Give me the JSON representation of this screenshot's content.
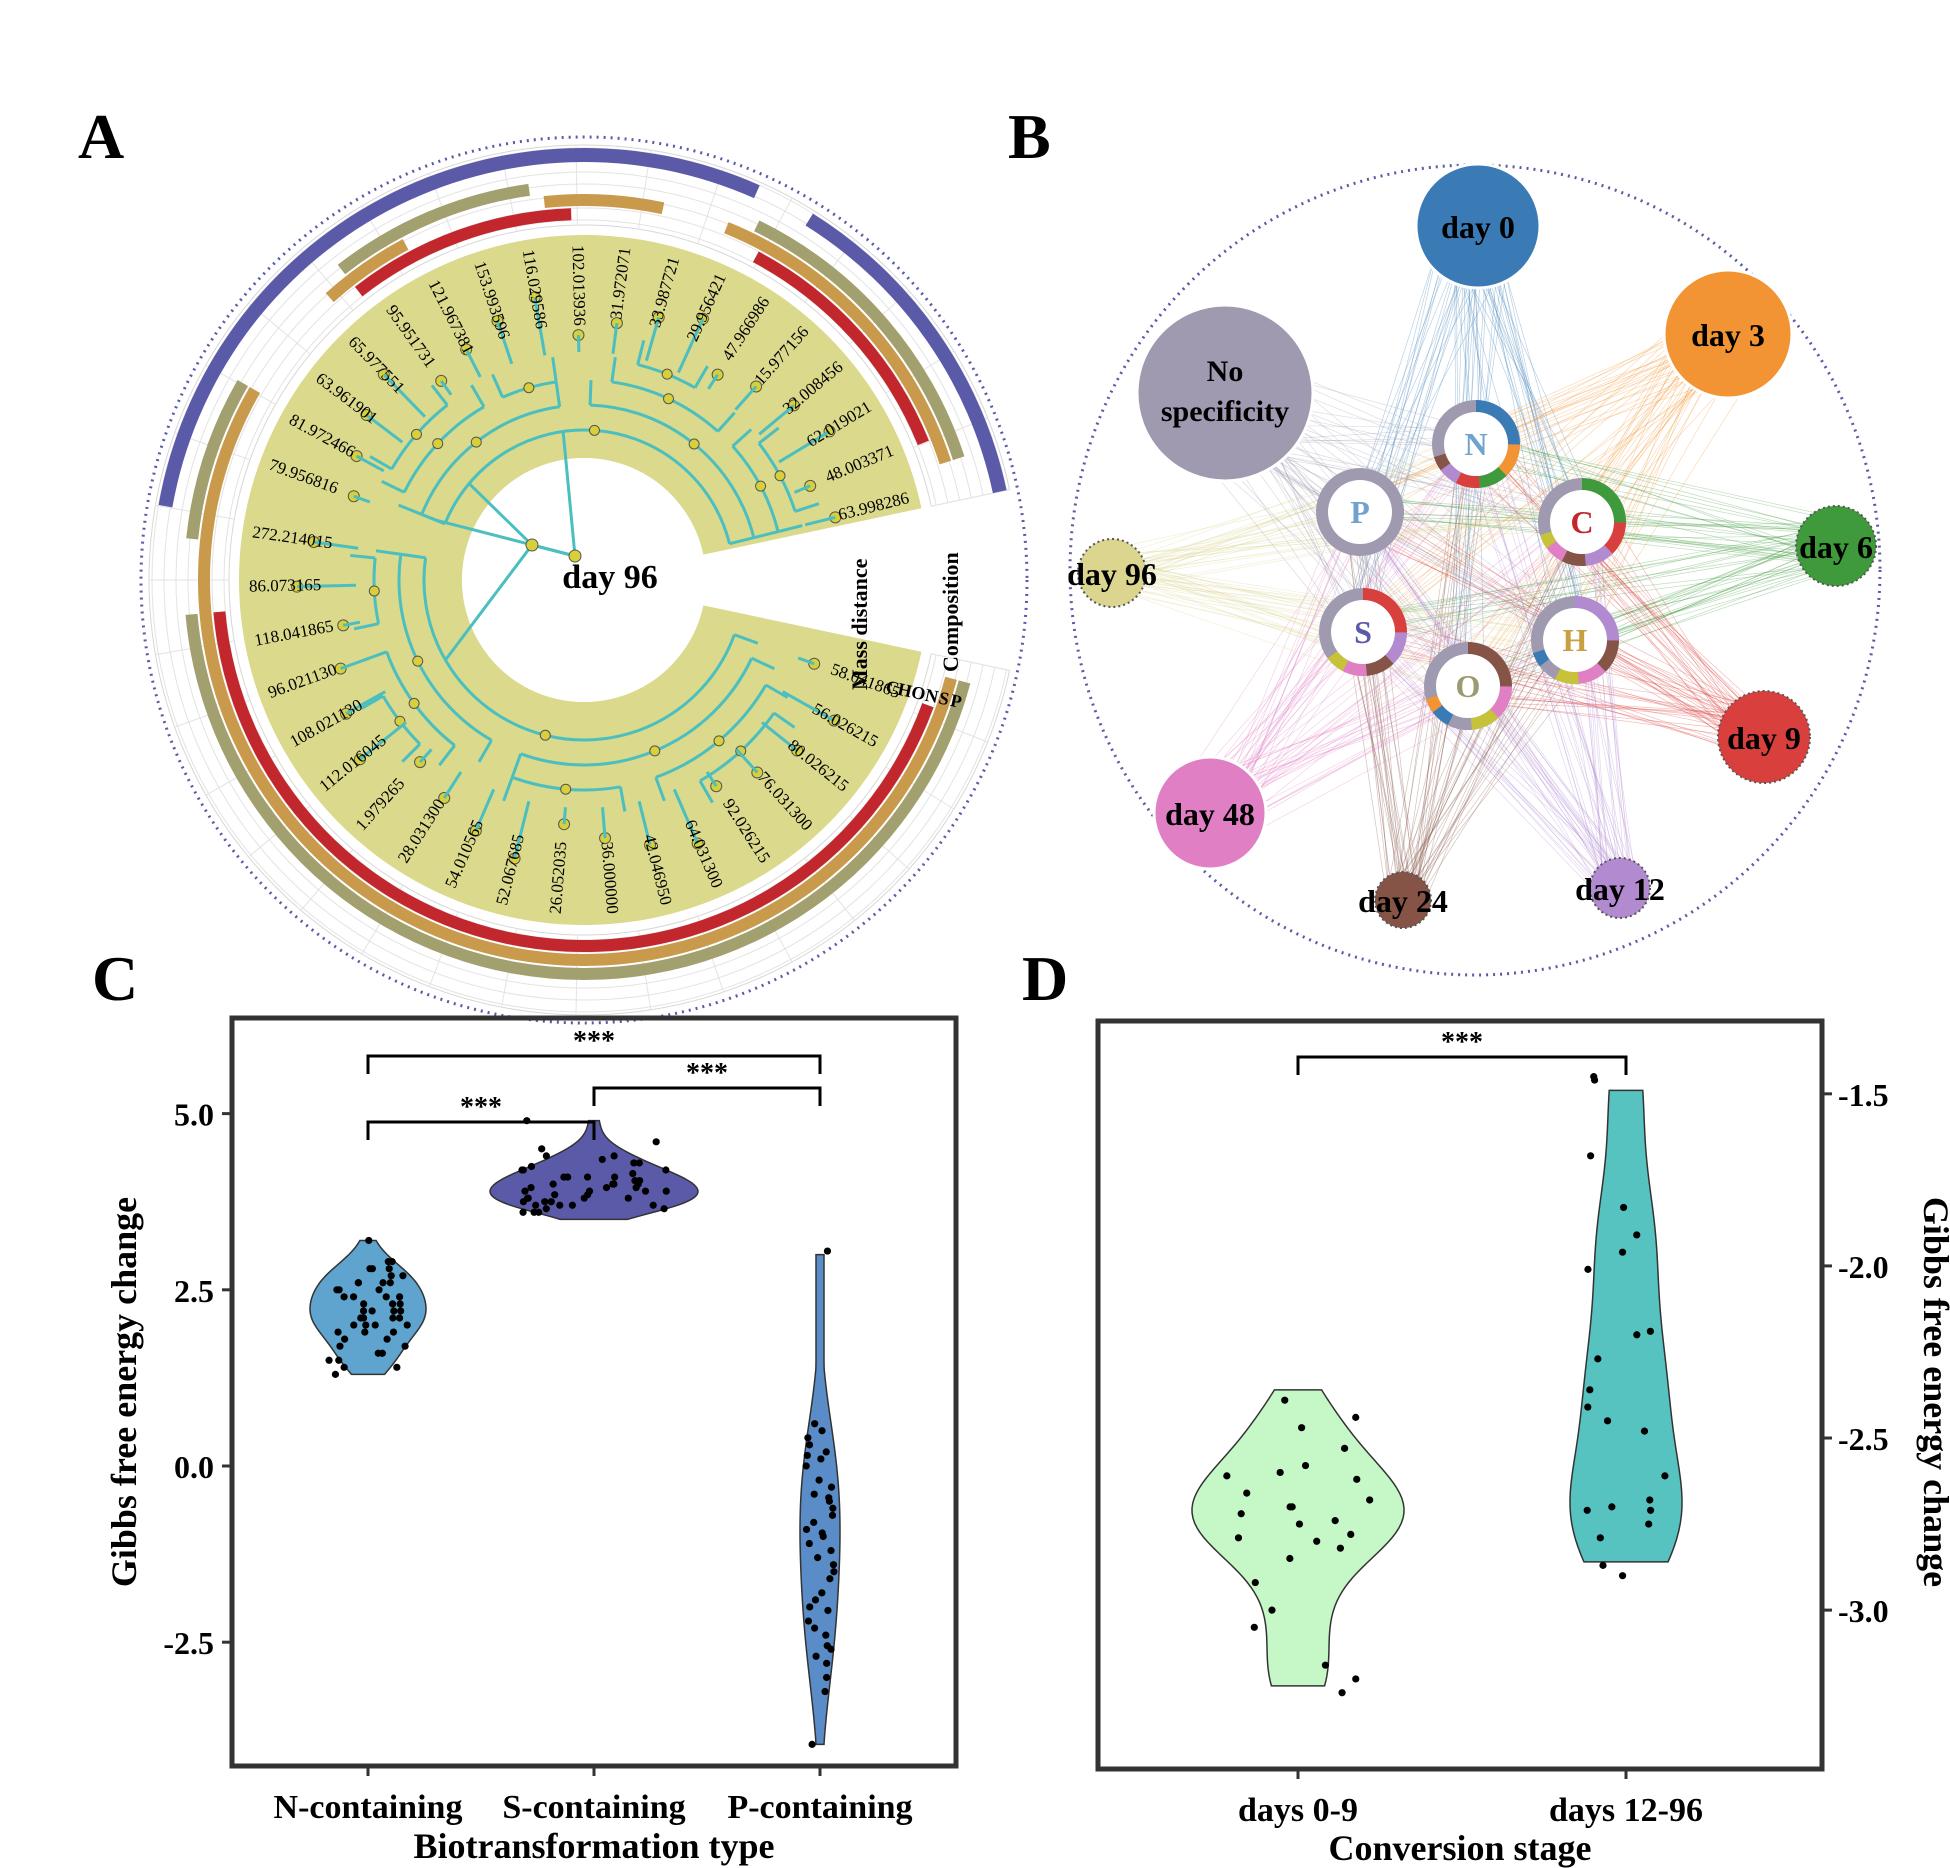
{
  "panels": {
    "A": "A",
    "B": "B",
    "C": "C",
    "D": "D"
  },
  "panelA": {
    "center_label": "day 96",
    "ring_label_mass": "Mass distance",
    "ring_label_composition": "Composition",
    "element_legend": [
      "C",
      "H",
      "O",
      "N",
      "S",
      "P"
    ],
    "element_colors": {
      "C": "#c1272d",
      "H": "#c9a040",
      "O": "#9b9a72",
      "N": "#7aa9c9",
      "S": "#5a5aa8",
      "P": "#5a5aa8"
    },
    "colors": {
      "fan": "#dad98c",
      "branch": "#4bbfc0",
      "node": "#d8d03a",
      "ring_red": "#c1272d",
      "ring_tan": "#c99a4c",
      "ring_olive": "#a3a070",
      "ring_purple": "#5a5aa8"
    },
    "leaves_upper": [
      "65.977551",
      "95.951731",
      "121.967381",
      "153.993596",
      "116.029586",
      "102.013936",
      "31.972071",
      "33.987721",
      "29.956421",
      "47.966986",
      "15.977156",
      "32.008456",
      "62.019021",
      "48.003371",
      "63.998286"
    ],
    "leaves_upper_left": [
      "63.961901",
      "81.972466",
      "79.956816"
    ],
    "leaves_lower": [
      "272.214015",
      "86.073165",
      "118.041865",
      "96.021130",
      "108.021130",
      "112.016045",
      "1.979265",
      "28.031300",
      "54.010565",
      "52.067685",
      "26.052035",
      "36.000000",
      "42.046950",
      "64.031300",
      "92.026215",
      "76.031300",
      "80.026215",
      "56.026215",
      "58.041865"
    ]
  },
  "panelB": {
    "element_nodes": [
      "N",
      "P",
      "C",
      "S",
      "H",
      "O"
    ],
    "element_label_colors": {
      "N": "#6fa2cf",
      "P": "#6fa2cf",
      "C": "#c1272d",
      "S": "#5a5aa8",
      "H": "#c9a040",
      "O": "#9b9a72"
    },
    "day_nodes": [
      {
        "label": "day 0",
        "color": "#3a7ab5"
      },
      {
        "label": "day 3",
        "color": "#f29433"
      },
      {
        "label": "day 6",
        "color": "#3f9a3c"
      },
      {
        "label": "day 9",
        "color": "#d9403d"
      },
      {
        "label": "day 12",
        "color": "#b18ad0"
      },
      {
        "label": "day 24",
        "color": "#855446"
      },
      {
        "label": "day 48",
        "color": "#e07fc4"
      },
      {
        "label": "day 96",
        "color": "#dbd58f"
      },
      {
        "label": "No\nspecificity",
        "color": "#9f9ab0"
      }
    ],
    "no_specificity_line1": "No",
    "no_specificity_line2": "specificity"
  },
  "chart_data": [
    {
      "panel": "C",
      "type": "violin",
      "title": "",
      "xlabel": "Biotransformation type",
      "ylabel": "Gibbs free energy change",
      "categories": [
        "N-containing",
        "S-containing",
        "P-containing"
      ],
      "ylim": [
        -4.2,
        6.3
      ],
      "yticks": [
        "5.0",
        "2.5",
        "0.0",
        "-2.5"
      ],
      "ytick_values": [
        5.0,
        2.5,
        0.0,
        -2.5
      ],
      "colors": [
        "#5ea4cf",
        "#5a5aa8",
        "#5a8cc8"
      ],
      "violin_ranges": [
        [
          1.3,
          3.2
        ],
        [
          3.5,
          4.9
        ],
        [
          -3.95,
          3.0
        ]
      ],
      "significance": [
        {
          "pair": [
            "N-containing",
            "S-containing"
          ],
          "label": "***"
        },
        {
          "pair": [
            "S-containing",
            "P-containing"
          ],
          "label": "***"
        },
        {
          "pair": [
            "N-containing",
            "P-containing"
          ],
          "label": "***"
        }
      ],
      "points": {
        "N-containing": [
          2.1,
          2.4,
          2.8,
          1.9,
          2.2,
          2.6,
          1.5,
          1.7,
          2.0,
          2.3,
          2.5,
          2.9,
          3.2,
          1.4,
          1.3,
          1.6,
          2.7,
          2.2,
          1.8,
          2.0,
          2.4,
          2.6,
          2.1,
          2.9,
          1.9,
          2.3,
          2.5,
          1.7,
          2.8,
          1.5,
          2.0,
          2.2,
          2.4,
          2.6,
          1.8,
          2.1,
          2.7,
          1.6,
          2.3,
          2.0,
          2.5,
          1.9,
          2.2,
          2.8,
          1.4,
          2.6,
          2.4,
          2.1
        ],
        "S-containing": [
          3.6,
          3.7,
          3.8,
          3.9,
          4.0,
          4.1,
          4.2,
          4.3,
          4.4,
          4.5,
          4.9,
          3.6,
          3.7,
          3.8,
          3.9,
          4.0,
          4.1,
          4.2,
          3.65,
          3.75,
          3.85,
          3.95,
          4.05,
          4.15,
          4.25,
          4.35,
          3.7,
          3.8,
          3.9,
          4.0,
          4.1,
          3.6,
          3.75,
          3.95,
          4.3,
          4.6,
          4.4,
          3.85,
          4.05,
          3.9,
          3.7,
          4.2,
          3.8,
          4.0,
          3.65,
          4.1,
          3.95,
          3.75
        ],
        "P-containing": [
          3.05,
          0.6,
          0.5,
          0.3,
          0.2,
          0.1,
          0.0,
          -0.2,
          -0.4,
          -0.5,
          -0.6,
          -0.8,
          -0.9,
          -1.0,
          -1.2,
          -1.4,
          -1.6,
          -1.8,
          -2.0,
          -2.2,
          -2.4,
          -2.6,
          -2.8,
          -3.0,
          -3.2,
          -3.95,
          0.4,
          -0.3,
          -0.7,
          -1.1,
          -1.5,
          -1.9,
          -2.3,
          -2.7,
          -0.45,
          0.15,
          -1.3,
          -2.05,
          -2.55,
          -0.95
        ]
      }
    },
    {
      "panel": "D",
      "type": "violin",
      "title": "",
      "xlabel": "Conversion stage",
      "ylabel": "Gibbs free energy change",
      "categories": [
        "days 0-9",
        "days 12-96"
      ],
      "ylim": [
        -3.45,
        -1.3
      ],
      "yticks": [
        "-1.5",
        "-2.0",
        "-2.5",
        "-3.0"
      ],
      "ytick_values": [
        -1.5,
        -2.0,
        -2.5,
        -3.0
      ],
      "colors": [
        "#c6f7c6",
        "#56c3c0"
      ],
      "violin_ranges": [
        [
          -3.22,
          -2.36
        ],
        [
          -2.86,
          -1.49
        ]
      ],
      "significance": [
        {
          "pair": [
            "days 0-9",
            "days 12-96"
          ],
          "label": "***"
        }
      ],
      "points": {
        "days 0-9": [
          -2.39,
          -2.44,
          -2.47,
          -2.53,
          -2.58,
          -2.6,
          -2.61,
          -2.66,
          -2.68,
          -2.7,
          -2.72,
          -2.74,
          -2.75,
          -2.78,
          -2.79,
          -2.8,
          -2.82,
          -2.85,
          -2.92,
          -3.0,
          -3.05,
          -3.16,
          -3.2,
          -3.24,
          -2.7,
          -2.62
        ],
        "days 12-96": [
          -1.45,
          -1.46,
          -1.68,
          -1.83,
          -1.91,
          -1.96,
          -2.01,
          -2.19,
          -2.2,
          -2.27,
          -2.36,
          -2.41,
          -2.45,
          -2.48,
          -2.61,
          -2.68,
          -2.7,
          -2.71,
          -2.79,
          -2.87,
          -2.9,
          -2.75,
          -2.71
        ]
      }
    }
  ]
}
